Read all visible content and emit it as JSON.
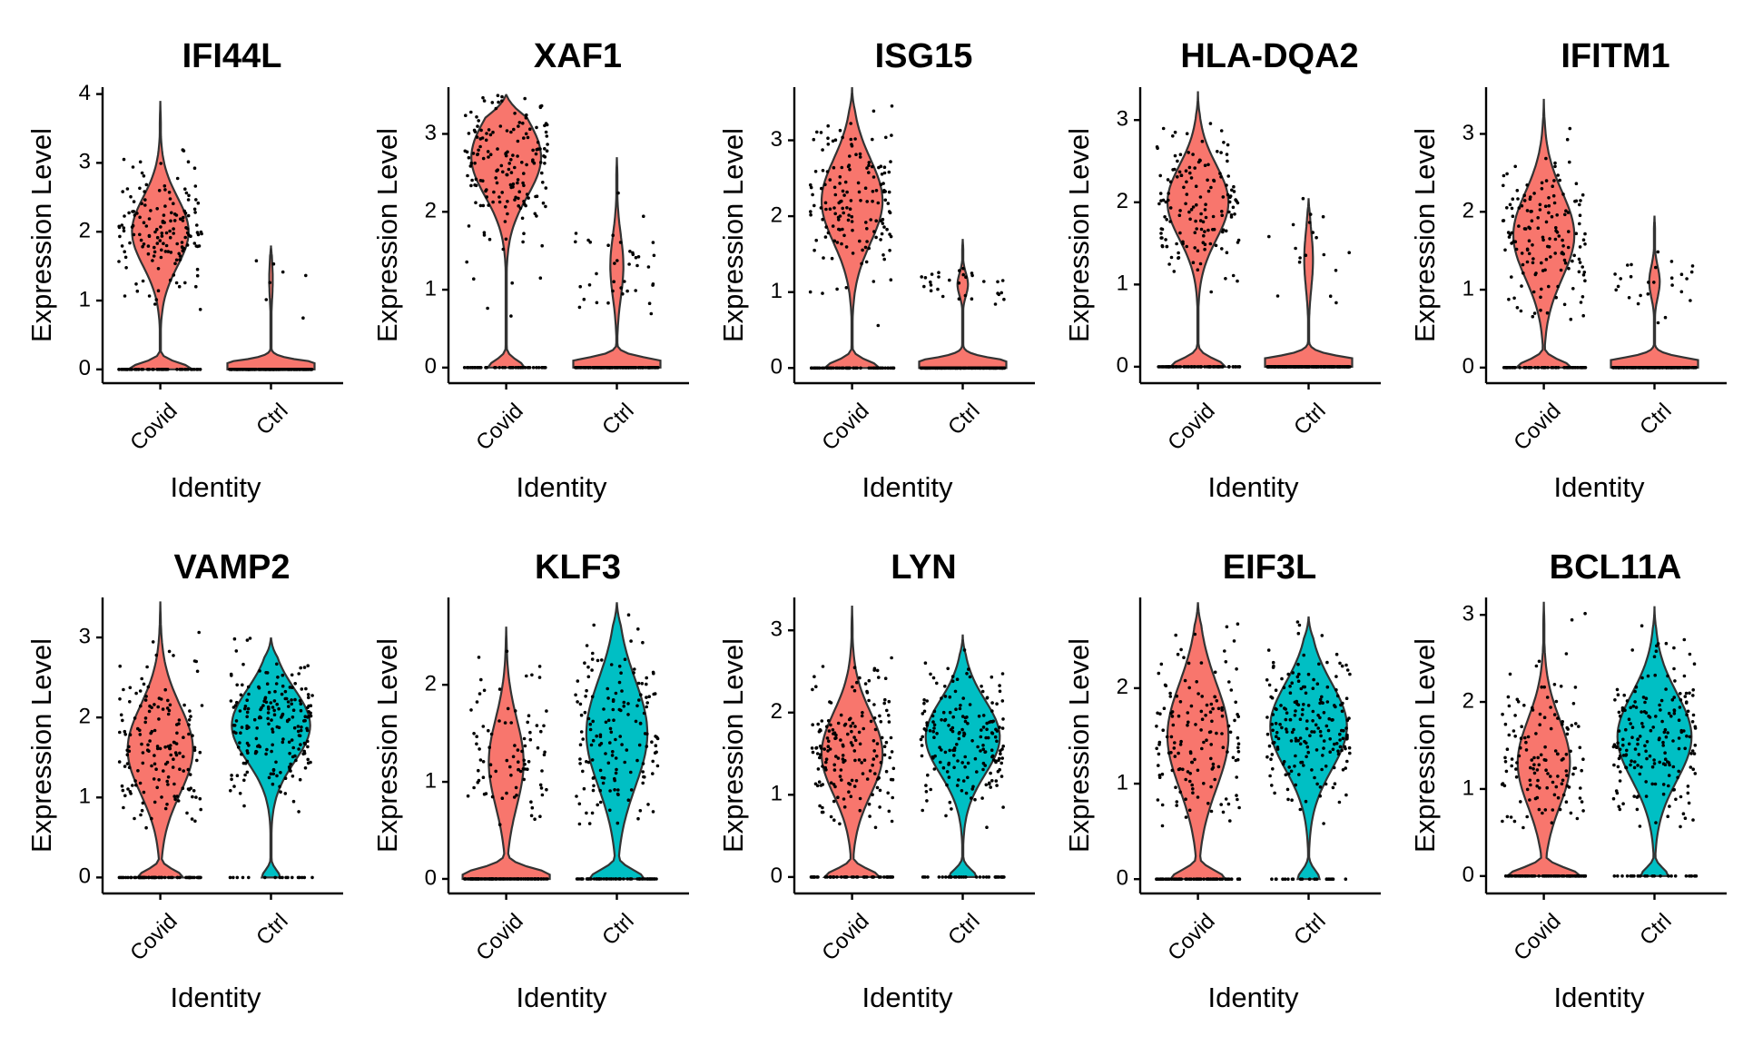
{
  "chart_data": [
    {
      "type": "violin",
      "title": "IFI44L",
      "xlabel": "Identity",
      "ylabel": "Expression Level",
      "categories": [
        "Covid",
        "Ctrl"
      ],
      "yticks": [
        0,
        1,
        2,
        3,
        4
      ],
      "ylim": [
        -0.2,
        4.1
      ],
      "series": [
        {
          "name": "Covid",
          "max": 3.9,
          "zero_fraction": 0.35,
          "mode": 2.0,
          "spread": 0.5,
          "color": "#F8766D"
        },
        {
          "name": "Ctrl",
          "max": 1.8,
          "zero_fraction": 0.96,
          "mode": 1.3,
          "spread": 0.3,
          "color": "#F8766D"
        }
      ]
    },
    {
      "type": "violin",
      "title": "XAF1",
      "xlabel": "Identity",
      "ylabel": "Expression Level",
      "categories": [
        "Covid",
        "Ctrl"
      ],
      "yticks": [
        0,
        1,
        2,
        3
      ],
      "ylim": [
        -0.2,
        3.6
      ],
      "series": [
        {
          "name": "Covid",
          "max": 3.5,
          "zero_fraction": 0.2,
          "mode": 2.7,
          "spread": 0.5,
          "color": "#F8766D"
        },
        {
          "name": "Ctrl",
          "max": 2.7,
          "zero_fraction": 0.85,
          "mode": 1.3,
          "spread": 0.4,
          "color": "#F8766D"
        }
      ]
    },
    {
      "type": "violin",
      "title": "ISG15",
      "xlabel": "Identity",
      "ylabel": "Expression Level",
      "categories": [
        "Covid",
        "Ctrl"
      ],
      "yticks": [
        0,
        1,
        2,
        3
      ],
      "ylim": [
        -0.2,
        3.7
      ],
      "series": [
        {
          "name": "Covid",
          "max": 3.7,
          "zero_fraction": 0.3,
          "mode": 2.2,
          "spread": 0.55,
          "color": "#F8766D"
        },
        {
          "name": "Ctrl",
          "max": 1.7,
          "zero_fraction": 0.88,
          "mode": 1.1,
          "spread": 0.15,
          "color": "#F8766D"
        }
      ]
    },
    {
      "type": "violin",
      "title": "HLA-DQA2",
      "xlabel": "Identity",
      "ylabel": "Expression Level",
      "categories": [
        "Covid",
        "Ctrl"
      ],
      "yticks": [
        0,
        1,
        2,
        3
      ],
      "ylim": [
        -0.2,
        3.4
      ],
      "series": [
        {
          "name": "Covid",
          "max": 3.35,
          "zero_fraction": 0.3,
          "mode": 2.0,
          "spread": 0.45,
          "color": "#F8766D"
        },
        {
          "name": "Ctrl",
          "max": 2.05,
          "zero_fraction": 0.9,
          "mode": 1.3,
          "spread": 0.35,
          "color": "#F8766D"
        }
      ]
    },
    {
      "type": "violin",
      "title": "IFITM1",
      "xlabel": "Identity",
      "ylabel": "Expression Level",
      "categories": [
        "Covid",
        "Ctrl"
      ],
      "yticks": [
        0,
        1,
        2,
        3
      ],
      "ylim": [
        -0.2,
        3.6
      ],
      "series": [
        {
          "name": "Covid",
          "max": 3.45,
          "zero_fraction": 0.3,
          "mode": 1.7,
          "spread": 0.55,
          "color": "#F8766D"
        },
        {
          "name": "Ctrl",
          "max": 1.95,
          "zero_fraction": 0.88,
          "mode": 1.1,
          "spread": 0.2,
          "color": "#F8766D"
        }
      ]
    },
    {
      "type": "violin",
      "title": "VAMP2",
      "xlabel": "Identity",
      "ylabel": "Expression Level",
      "categories": [
        "Covid",
        "Ctrl"
      ],
      "yticks": [
        0,
        1,
        2,
        3
      ],
      "ylim": [
        -0.2,
        3.5
      ],
      "series": [
        {
          "name": "Covid",
          "max": 3.45,
          "zero_fraction": 0.25,
          "mode": 1.6,
          "spread": 0.55,
          "color": "#F8766D"
        },
        {
          "name": "Ctrl",
          "max": 3.0,
          "zero_fraction": 0.1,
          "mode": 1.9,
          "spread": 0.45,
          "color": "#00BFC4"
        }
      ]
    },
    {
      "type": "violin",
      "title": "KLF3",
      "xlabel": "Identity",
      "ylabel": "Expression Level",
      "categories": [
        "Covid",
        "Ctrl"
      ],
      "yticks": [
        0,
        1,
        2
      ],
      "ylim": [
        -0.15,
        2.9
      ],
      "series": [
        {
          "name": "Covid",
          "max": 2.6,
          "zero_fraction": 0.6,
          "mode": 1.2,
          "spread": 0.45,
          "color": "#F8766D"
        },
        {
          "name": "Ctrl",
          "max": 2.85,
          "zero_fraction": 0.3,
          "mode": 1.5,
          "spread": 0.55,
          "color": "#00BFC4"
        }
      ]
    },
    {
      "type": "violin",
      "title": "LYN",
      "xlabel": "Identity",
      "ylabel": "Expression Level",
      "categories": [
        "Covid",
        "Ctrl"
      ],
      "yticks": [
        0,
        1,
        2,
        3
      ],
      "ylim": [
        -0.2,
        3.4
      ],
      "series": [
        {
          "name": "Covid",
          "max": 3.3,
          "zero_fraction": 0.3,
          "mode": 1.5,
          "spread": 0.5,
          "color": "#F8766D"
        },
        {
          "name": "Ctrl",
          "max": 2.95,
          "zero_fraction": 0.15,
          "mode": 1.7,
          "spread": 0.45,
          "color": "#00BFC4"
        }
      ]
    },
    {
      "type": "violin",
      "title": "EIF3L",
      "xlabel": "Identity",
      "ylabel": "Expression Level",
      "categories": [
        "Covid",
        "Ctrl"
      ],
      "yticks": [
        0,
        1,
        2
      ],
      "ylim": [
        -0.15,
        2.95
      ],
      "series": [
        {
          "name": "Covid",
          "max": 2.9,
          "zero_fraction": 0.3,
          "mode": 1.5,
          "spread": 0.55,
          "color": "#F8766D"
        },
        {
          "name": "Ctrl",
          "max": 2.75,
          "zero_fraction": 0.12,
          "mode": 1.6,
          "spread": 0.45,
          "color": "#00BFC4"
        }
      ]
    },
    {
      "type": "violin",
      "title": "BCL11A",
      "xlabel": "Identity",
      "ylabel": "Expression Level",
      "categories": [
        "Covid",
        "Ctrl"
      ],
      "yticks": [
        0,
        1,
        2,
        3
      ],
      "ylim": [
        -0.2,
        3.2
      ],
      "series": [
        {
          "name": "Covid",
          "max": 3.15,
          "zero_fraction": 0.4,
          "mode": 1.3,
          "spread": 0.5,
          "color": "#F8766D"
        },
        {
          "name": "Ctrl",
          "max": 3.1,
          "zero_fraction": 0.15,
          "mode": 1.6,
          "spread": 0.5,
          "color": "#00BFC4"
        }
      ]
    }
  ]
}
